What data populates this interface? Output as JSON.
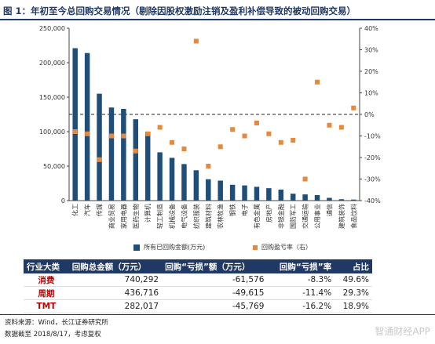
{
  "title": "图 1：年初至今总回购交易情况（剔除因股权激励注销及盈利补偿导致的被动回购交易）",
  "chart_data": {
    "type": "bar",
    "categories": [
      "化工",
      "汽车",
      "传媒",
      "商业贸易",
      "家用电器",
      "医药生物",
      "计算机",
      "轻工制造",
      "机械设备",
      "电气设备",
      "纺织服装",
      "建筑材料",
      "农林牧渔",
      "钢铁",
      "电子",
      "有色金属",
      "房地产",
      "非银金融",
      "国防军工",
      "交通运输",
      "公用事业",
      "通信",
      "建筑装饰",
      "食品饮料"
    ],
    "series": [
      {
        "name": "所有已回购金额(万元)",
        "axis": "left",
        "kind": "bar",
        "values": [
          221000,
          214000,
          155000,
          135000,
          133000,
          118000,
          100000,
          70000,
          62000,
          53000,
          44000,
          31000,
          29000,
          23000,
          22000,
          20000,
          18000,
          16000,
          10000,
          9000,
          8000,
          4000,
          2000,
          1500
        ]
      },
      {
        "name": "回购盈亏率（右）",
        "axis": "right",
        "kind": "scatter",
        "values": [
          -8,
          -9,
          -21,
          -10,
          -10,
          -17,
          -9,
          -6,
          -13,
          -16,
          34,
          -24,
          -15,
          -7,
          -10,
          -4,
          -9,
          -13,
          -12,
          -30,
          15,
          -5,
          -6,
          3
        ]
      }
    ],
    "ylim_left": [
      0,
      250000
    ],
    "yticks_left": [
      "0",
      "50,000",
      "100,000",
      "150,000",
      "200,000",
      "250,000"
    ],
    "ylim_right": [
      -40,
      40
    ],
    "yticks_right": [
      "-40%",
      "-30%",
      "-20%",
      "-10%",
      "0%",
      "10%",
      "20%",
      "30%",
      "40%"
    ],
    "zero_line": "dashed",
    "grid": false,
    "legend_position": "bottom",
    "colors": {
      "bar": "#1f4e79",
      "point": "#e8883a"
    }
  },
  "legend": {
    "bar_label": "所有已回购金额(万元)",
    "point_label": "回购盈亏率（右）"
  },
  "table": {
    "headers": [
      "行业大类",
      "回购总金额（万元）",
      "回购“亏损”额（万元）",
      "回购“亏损”率",
      "占比"
    ],
    "rows": [
      {
        "name": "消费",
        "total": "740,292",
        "loss": "-61,576",
        "rate": "-8.3%",
        "share": "49.6%"
      },
      {
        "name": "周期",
        "total": "436,716",
        "loss": "-49,615",
        "rate": "-11.4%",
        "share": "29.3%"
      },
      {
        "name": "TMT",
        "total": "282,017",
        "loss": "-45,769",
        "rate": "-16.2%",
        "share": "18.9%"
      }
    ]
  },
  "source_line1": "资料来源：Wind，长江证券研究所",
  "source_line2": "数据截至 2018/8/17，考虑复权",
  "watermark": "智通财经APP"
}
